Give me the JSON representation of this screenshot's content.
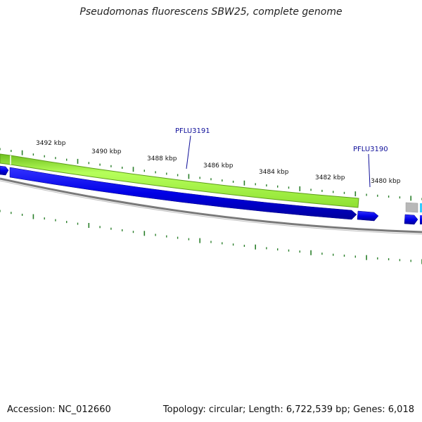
{
  "title": "Pseudomonas fluorescens SBW25, complete genome",
  "footer": {
    "accession": "Accession: NC_012660",
    "stats": "Topology: circular; Length: 6,722,539 bp; Genes: 6,018"
  },
  "colors": {
    "cds_forward": "#0000e6",
    "feature_bar": "#99ff33",
    "backbone": "#777777",
    "ticks": "#2a7f2a",
    "gene_label": "#10109a",
    "other_feature": "#b8b8b8",
    "cyan_feature": "#33ccff"
  },
  "ticks": [
    {
      "label": "3492 kbp"
    },
    {
      "label": "3490 kbp"
    },
    {
      "label": "3488 kbp"
    },
    {
      "label": "3486 kbp"
    },
    {
      "label": "3484 kbp"
    },
    {
      "label": "3482 kbp"
    },
    {
      "label": "3480 kbp"
    }
  ],
  "genes": [
    {
      "name": "PFLU3191"
    },
    {
      "name": "PFLU3190"
    }
  ]
}
